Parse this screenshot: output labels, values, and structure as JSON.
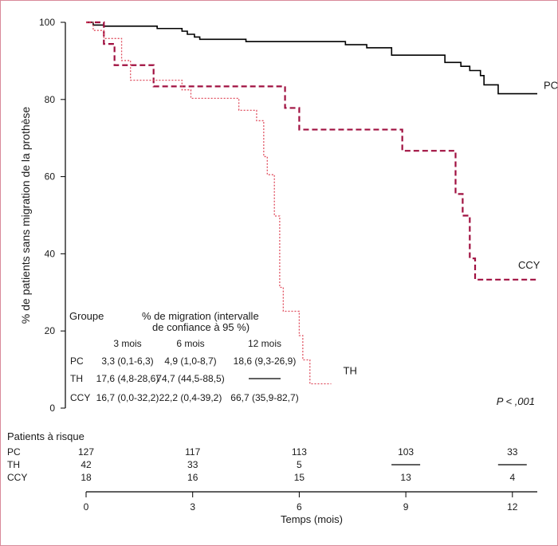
{
  "chart_data": {
    "type": "line",
    "step": true,
    "ylabel": "% de patients sans migration de la prothèse",
    "xlabel": "Temps (mois)",
    "xlim": [
      0,
      12.7
    ],
    "ylim": [
      0,
      100
    ],
    "x_ticks": [
      "0",
      "3",
      "6",
      "9",
      "12"
    ],
    "y_ticks": [
      "0",
      "20",
      "40",
      "60",
      "80",
      "100"
    ],
    "p_value": "P < ,001",
    "colors": {
      "PC": "#000000",
      "CCY": "#a01040",
      "TH": "#e05060"
    },
    "series": [
      {
        "name": "PC",
        "style": "solid",
        "label_pos": "end",
        "x": [
          0,
          0.2,
          0.5,
          2.0,
          2.7,
          2.85,
          3.05,
          3.2,
          4.5,
          5.0,
          7.3,
          7.9,
          8.6,
          10.1,
          10.55,
          10.8,
          11.1,
          11.2,
          11.6,
          12.7
        ],
        "y": [
          100,
          99.3,
          99,
          98.4,
          97.7,
          96.9,
          96.2,
          95.6,
          95,
          95,
          94.2,
          93.4,
          91.5,
          89.6,
          88.6,
          87.5,
          86.2,
          83.8,
          81.5,
          81.5
        ]
      },
      {
        "name": "CCY",
        "style": "dashed",
        "label_pos": "end",
        "x": [
          0,
          0.5,
          0.8,
          1.0,
          1.9,
          5.6,
          6.0,
          8.9,
          10.4,
          10.6,
          10.8,
          10.95,
          11.1,
          12.7
        ],
        "y": [
          100,
          94.4,
          88.9,
          88.9,
          83.4,
          77.8,
          72.2,
          66.7,
          55.5,
          49.9,
          38.8,
          33.3,
          33.3,
          33.3
        ]
      },
      {
        "name": "TH",
        "style": "dotted",
        "label_pos": "end",
        "x": [
          0,
          0.2,
          0.5,
          1.0,
          1.25,
          2.7,
          2.95,
          4.3,
          4.8,
          5.0,
          5.1,
          5.3,
          5.45,
          5.55,
          5.6,
          6.0,
          6.1,
          6.3,
          6.35,
          6.9
        ],
        "y": [
          100,
          97.9,
          95.8,
          90.1,
          85,
          82.5,
          80.3,
          77.2,
          74.5,
          65.2,
          60.5,
          49.8,
          31.3,
          25.1,
          25.1,
          18.8,
          12.5,
          6.3,
          6.3,
          6.3
        ]
      }
    ],
    "inset_table": {
      "group_header": "Groupe",
      "title": "% de migration (intervalle de confiance à 95 %)",
      "title_line1": "% de migration (intervalle",
      "title_line2": "de confiance à 95 %)",
      "columns": [
        "3 mois",
        "6 mois",
        "12 mois"
      ],
      "rows": [
        {
          "group": "PC",
          "values": [
            "3,3 (0,1-6,3)",
            "4,9 (1,0-8,7)",
            "18,6 (9,3-26,9)"
          ]
        },
        {
          "group": "TH",
          "values": [
            "17,6 (4,8-28,6)",
            "74,7 (44,5-88,5)",
            "—"
          ]
        },
        {
          "group": "CCY",
          "values": [
            "16,7 (0,0-32,2)",
            "22,2 (0,4-39,2)",
            "66,7 (35,9-82,7)"
          ]
        }
      ]
    },
    "at_risk": {
      "title": "Patients à risque",
      "times": [
        0,
        3,
        6,
        9,
        12
      ],
      "rows": [
        {
          "group": "PC",
          "values": [
            "127",
            "117",
            "113",
            "103",
            "33"
          ]
        },
        {
          "group": "TH",
          "values": [
            "42",
            "33",
            "5",
            "—",
            "—"
          ]
        },
        {
          "group": "CCY",
          "values": [
            "18",
            "16",
            "15",
            "13",
            "4"
          ]
        }
      ]
    }
  }
}
